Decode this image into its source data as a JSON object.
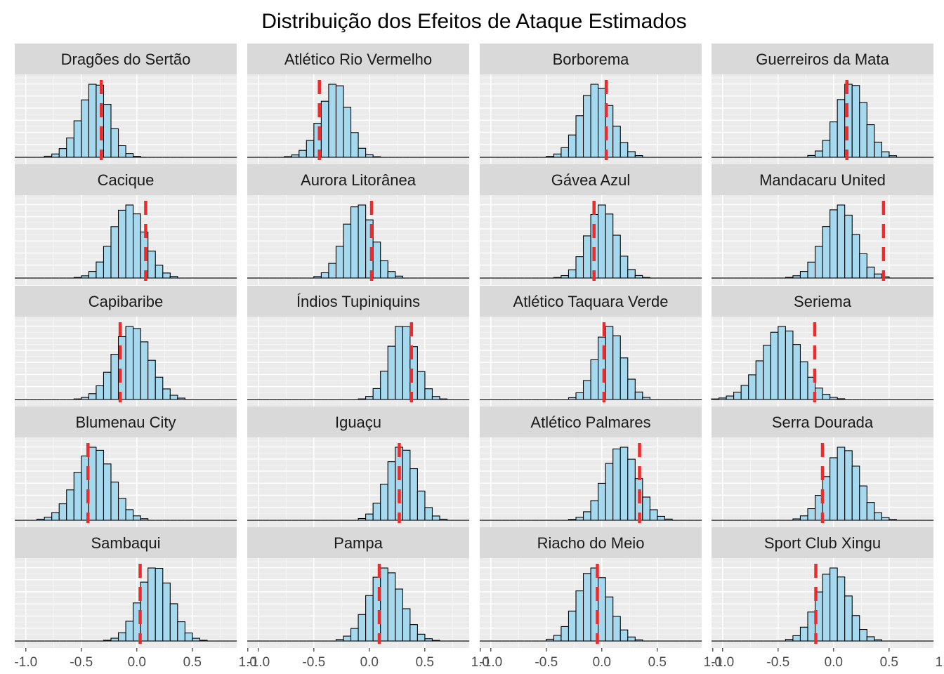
{
  "chart_data": {
    "type": "histogram",
    "title": "Distribuição dos Efeitos de Ataque Estimados",
    "xlabel": "",
    "ylabel": "",
    "xlim": [
      -1.1,
      0.9
    ],
    "x_ticks": [
      -1.0,
      -0.5,
      0.0,
      0.5,
      1.0
    ],
    "x_tick_labels": [
      "-1.0",
      "-0.5",
      "0.0",
      "0.5",
      "1.0"
    ],
    "bin_width": 0.0667,
    "grid": true,
    "layout": {
      "columns": 4,
      "rows": 5
    },
    "colors": {
      "bar_fill": "#a6d8ee",
      "bar_stroke": "#000000",
      "vline": "#ee2a2a",
      "panel_bg": "#ebebeb",
      "strip_bg": "#d9d9d9"
    },
    "panels": [
      {
        "team": "Dragões do Sertão",
        "center": -0.28,
        "sd": 0.17,
        "skew": -1.2,
        "vline": -0.32
      },
      {
        "team": "Atlético Rio Vermelho",
        "center": -0.22,
        "sd": 0.16,
        "skew": -1.2,
        "vline": -0.45
      },
      {
        "team": "Borborema",
        "center": -0.05,
        "sd": 0.14,
        "skew": 0.0,
        "vline": 0.04
      },
      {
        "team": "Guerreiros da Mata",
        "center": 0.12,
        "sd": 0.14,
        "skew": 0.4,
        "vline": 0.12
      },
      {
        "team": "Cacique",
        "center": -0.1,
        "sd": 0.15,
        "skew": 0.2,
        "vline": 0.08
      },
      {
        "team": "Aurora Litorânea",
        "center": -0.05,
        "sd": 0.14,
        "skew": -0.4,
        "vline": 0.02
      },
      {
        "team": "Gávea Azul",
        "center": -0.02,
        "sd": 0.13,
        "skew": 0.2,
        "vline": -0.07
      },
      {
        "team": "Mandacaru United",
        "center": 0.12,
        "sd": 0.16,
        "skew": -0.6,
        "vline": 0.45
      },
      {
        "team": "Capibaribe",
        "center": -0.07,
        "sd": 0.16,
        "skew": 0.2,
        "vline": -0.15
      },
      {
        "team": "Índios Tupiniquins",
        "center": 0.32,
        "sd": 0.12,
        "skew": -0.2,
        "vline": 0.38
      },
      {
        "team": "Atlético Taquara Verde",
        "center": 0.03,
        "sd": 0.13,
        "skew": 0.4,
        "vline": 0.02
      },
      {
        "team": "Seriema",
        "center": -0.35,
        "sd": 0.22,
        "skew": -1.0,
        "vline": -0.17
      },
      {
        "team": "Blumenau City",
        "center": -0.31,
        "sd": 0.18,
        "skew": -0.6,
        "vline": -0.44
      },
      {
        "team": "Iguaçu",
        "center": 0.29,
        "sd": 0.13,
        "skew": 0.0,
        "vline": 0.27
      },
      {
        "team": "Atlético Palmares",
        "center": 0.2,
        "sd": 0.15,
        "skew": -0.2,
        "vline": 0.34
      },
      {
        "team": "Serra Dourada",
        "center": 0.06,
        "sd": 0.15,
        "skew": 0.2,
        "vline": -0.1
      },
      {
        "team": "Sambaqui",
        "center": 0.12,
        "sd": 0.15,
        "skew": 0.4,
        "vline": 0.03
      },
      {
        "team": "Pampa",
        "center": 0.12,
        "sd": 0.15,
        "skew": 0.2,
        "vline": 0.09
      },
      {
        "team": "Riacho do Meio",
        "center": -0.03,
        "sd": 0.15,
        "skew": -0.4,
        "vline": -0.04
      },
      {
        "team": "Sport Club Xingu",
        "center": 0.04,
        "sd": 0.15,
        "skew": -0.4,
        "vline": -0.16
      }
    ]
  }
}
